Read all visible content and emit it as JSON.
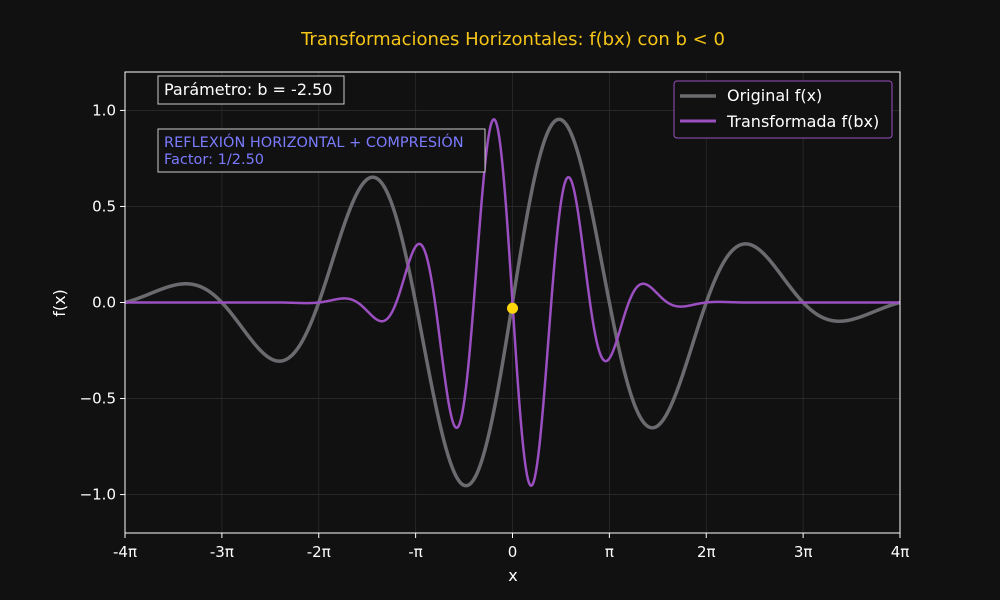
{
  "chart_data": {
    "type": "line",
    "title": "Transformaciones Horizontales: f(bx) con b < 0",
    "xlabel": "x",
    "ylabel": "f(x)",
    "xlim_over_pi": [
      -4,
      4
    ],
    "ylim": [
      -1.2,
      1.2
    ],
    "x_ticks_over_pi": [
      -4,
      -3,
      -2,
      -1,
      0,
      1,
      2,
      3,
      4
    ],
    "x_tick_labels": [
      "-4π",
      "-3π",
      "-2π",
      "-π",
      "0",
      "π",
      "2π",
      "3π",
      "4π"
    ],
    "y_ticks": [
      -1.0,
      -0.5,
      0.0,
      0.5,
      1.0
    ],
    "y_tick_labels": [
      "−1.0",
      "−0.5",
      "0.0",
      "0.5",
      "1.0"
    ],
    "grid": true,
    "legend_position": "top-right",
    "parameter_b": -2.5,
    "series": [
      {
        "name": "Original f(x)",
        "color": "#6b6b6f",
        "formula": "sin(x) * exp(-0.02 * x^2) evaluated at x"
      },
      {
        "name": "Transformada f(bx)",
        "color": "#9b4fc0",
        "formula": "sin(b*x) * exp(-0.02 * (b*x)^2) evaluated at x"
      }
    ],
    "highlight_point": {
      "x": 0,
      "y": -0.03,
      "color": "#ffd60a"
    },
    "annotations": {
      "parameter_text": "Parámetro: b = -2.50",
      "info_line1": "REFLEXIÓN HORIZONTAL + COMPRESIÓN",
      "info_line2": "Factor: 1/2.50"
    }
  },
  "colors": {
    "background": "#111111",
    "title": "#f5c518",
    "info": "#7b7bff",
    "legend_border": "#9b4fc0"
  }
}
